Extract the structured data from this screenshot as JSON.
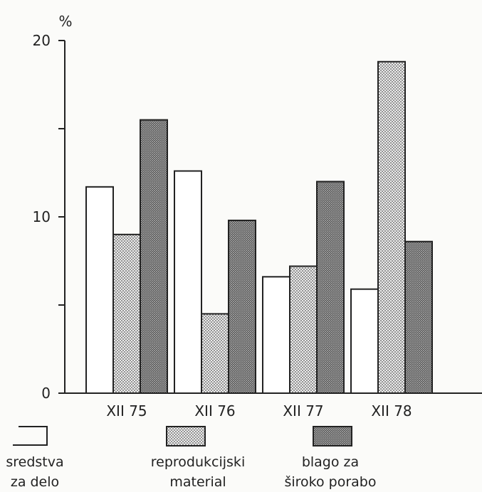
{
  "chart_data": {
    "type": "bar",
    "title": "",
    "xlabel": "",
    "ylabel": "%",
    "ylim": [
      0,
      20
    ],
    "yticks": [
      "0",
      "10",
      "20"
    ],
    "categories": [
      "XII 75",
      "XII 76",
      "XII 77",
      "XII 78"
    ],
    "series": [
      {
        "name": "sredstva za delo",
        "legend_lines": [
          "sredstva",
          "za delo"
        ],
        "pattern": "white",
        "values": [
          11.7,
          12.6,
          6.6,
          5.9
        ]
      },
      {
        "name": "reprodukcijski material",
        "legend_lines": [
          "reprodukcijski",
          "material"
        ],
        "pattern": "light-dots",
        "values": [
          9.0,
          4.5,
          7.2,
          18.8
        ]
      },
      {
        "name": "blago za široko porabo",
        "legend_lines": [
          "blago za",
          "široko porabo"
        ],
        "pattern": "dark-dots",
        "values": [
          15.5,
          9.8,
          12.0,
          8.6
        ]
      }
    ],
    "grid": false,
    "legend_position": "bottom"
  },
  "colors": {
    "ink": "#222222",
    "paper": "#fbfbf9",
    "light_fill": "#e2e2e2",
    "dark_fill": "#8a8a8a"
  }
}
